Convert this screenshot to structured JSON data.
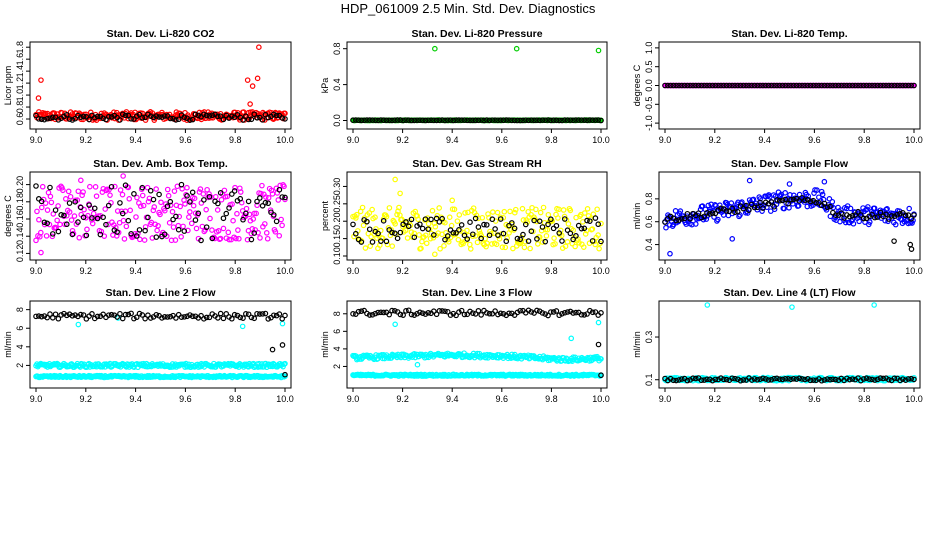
{
  "page": {
    "title": "HDP_061009  2.5 Min. Std. Dev. Diagnostics"
  },
  "colors": {
    "red": "#ff0000",
    "black": "#000000",
    "green": "#00cc00",
    "magenta": "#ff00ff",
    "yellow": "#ffff00",
    "blue": "#0000ff",
    "cyan": "#00ffff"
  },
  "chart_data": [
    {
      "type": "scatter",
      "title": "Stan. Dev. Li-820 CO2",
      "ylabel": "Licor ppm",
      "xlim": [
        9.0,
        10.0
      ],
      "ylim": [
        0.5,
        1.82
      ],
      "xticks": [
        "9.0",
        "9.2",
        "9.4",
        "9.6",
        "9.8",
        "10.0"
      ],
      "yticks": [
        0.6,
        0.8,
        1.0,
        1.2,
        1.4,
        1.6,
        1.8
      ],
      "yticklabels": [
        "0.6",
        "0.8",
        "1.0",
        "1.2",
        "1.4",
        "1.6",
        "1.8"
      ],
      "series": [
        {
          "color": "red",
          "band": [
            0.58,
            0.72
          ],
          "outliers": [
            [
              9.01,
              0.95
            ],
            [
              9.02,
              1.25
            ],
            [
              9.85,
              1.25
            ],
            [
              9.87,
              1.15
            ],
            [
              9.89,
              1.28
            ],
            [
              9.895,
              1.8
            ],
            [
              9.86,
              0.85
            ]
          ]
        },
        {
          "color": "black",
          "band": [
            0.58,
            0.68
          ]
        }
      ]
    },
    {
      "type": "scatter",
      "title": "Stan. Dev. Li-820 Pressure",
      "ylabel": "kPa",
      "xlim": [
        9.0,
        10.0
      ],
      "ylim": [
        -0.05,
        0.83
      ],
      "xticks": [
        "9.0",
        "9.2",
        "9.4",
        "9.6",
        "9.8",
        "10.0"
      ],
      "yticks": [
        0.0,
        0.4,
        0.8
      ],
      "yticklabels": [
        "0.0",
        "0.4",
        "0.8"
      ],
      "series": [
        {
          "color": "green",
          "band": [
            0.0,
            0.005
          ],
          "outliers": [
            [
              9.33,
              0.8
            ],
            [
              9.66,
              0.8
            ],
            [
              9.99,
              0.78
            ]
          ]
        },
        {
          "color": "black",
          "band": [
            0.0,
            0.005
          ]
        }
      ]
    },
    {
      "type": "scatter",
      "title": "Stan. Dev. Li-820 Temp.",
      "ylabel": "degrees C",
      "xlim": [
        9.0,
        10.0
      ],
      "ylim": [
        -1.05,
        1.05
      ],
      "xticks": [
        "9.0",
        "9.2",
        "9.4",
        "9.6",
        "9.8",
        "10.0"
      ],
      "yticks": [
        -1.0,
        -0.5,
        0.0,
        0.5,
        1.0
      ],
      "yticklabels": [
        "-1.0",
        "-0.5",
        "0.0",
        "0.5",
        "1.0"
      ],
      "series": [
        {
          "color": "magenta",
          "band": [
            0.0,
            0.0
          ]
        },
        {
          "color": "black",
          "band": [
            0.0,
            0.0
          ]
        }
      ]
    },
    {
      "type": "scatter",
      "title": "Stan. Dev. Amb. Box Temp.",
      "ylabel": "degrees C",
      "xlim": [
        9.0,
        10.0
      ],
      "ylim": [
        0.117,
        0.21
      ],
      "xticks": [
        "9.0",
        "9.2",
        "9.4",
        "9.6",
        "9.8",
        "10.0"
      ],
      "yticks": [
        0.12,
        0.14,
        0.16,
        0.18,
        0.2
      ],
      "yticklabels": [
        "0.12",
        "0.14",
        "0.16",
        "0.18",
        "0.20"
      ],
      "series": [
        {
          "color": "magenta",
          "band": [
            0.135,
            0.2
          ],
          "outliers": [
            [
              9.02,
              0.121
            ],
            [
              9.18,
              0.205
            ],
            [
              9.35,
              0.21
            ]
          ]
        },
        {
          "color": "black",
          "band": [
            0.135,
            0.2
          ]
        }
      ]
    },
    {
      "type": "scatter",
      "title": "Stan. Dev. Gas Stream RH",
      "ylabel": "percent",
      "xlim": [
        9.0,
        10.0
      ],
      "ylim": [
        0.1,
        0.33
      ],
      "xticks": [
        "9.0",
        "9.2",
        "9.4",
        "9.6",
        "9.8",
        "10.0"
      ],
      "yticks": [
        0.1,
        0.15,
        0.2,
        0.25,
        0.3
      ],
      "yticklabels": [
        "0.10",
        "0.15",
        "0.20",
        "0.25",
        "0.30"
      ],
      "series": [
        {
          "color": "yellow",
          "band": [
            0.12,
            0.24
          ],
          "outliers": [
            [
              9.17,
              0.32
            ],
            [
              9.19,
              0.28
            ],
            [
              9.33,
              0.105
            ],
            [
              9.4,
              0.26
            ]
          ]
        },
        {
          "color": "black",
          "band": [
            0.14,
            0.21
          ]
        }
      ]
    },
    {
      "type": "scatter",
      "title": "Stan. Dev. Sample Flow",
      "ylabel": "ml/min",
      "xlim": [
        9.0,
        10.0
      ],
      "ylim": [
        0.3,
        1.0
      ],
      "xticks": [
        "9.0",
        "9.2",
        "9.4",
        "9.6",
        "9.8",
        "10.0"
      ],
      "yticks": [
        0.4,
        0.6,
        0.8
      ],
      "yticklabels": [
        "0.4",
        "0.6",
        "0.8"
      ],
      "series": [
        {
          "color": "blue",
          "curve": [
            [
              9.0,
              0.62
            ],
            [
              9.2,
              0.68
            ],
            [
              9.5,
              0.8
            ],
            [
              9.62,
              0.8
            ],
            [
              9.7,
              0.66
            ],
            [
              10.0,
              0.65
            ]
          ],
          "spread": 0.08,
          "outliers": [
            [
              9.34,
              0.96
            ],
            [
              9.5,
              0.93
            ],
            [
              9.64,
              0.95
            ],
            [
              9.02,
              0.32
            ],
            [
              9.27,
              0.45
            ]
          ]
        },
        {
          "color": "black",
          "curve": [
            [
              9.0,
              0.62
            ],
            [
              9.2,
              0.68
            ],
            [
              9.5,
              0.78
            ],
            [
              9.62,
              0.78
            ],
            [
              9.7,
              0.66
            ],
            [
              10.0,
              0.65
            ]
          ],
          "spread": 0.03,
          "outliers": [
            [
              9.92,
              0.43
            ],
            [
              9.99,
              0.36
            ],
            [
              9.985,
              0.4
            ]
          ]
        }
      ]
    },
    {
      "type": "scatter",
      "title": "Stan. Dev. Line 2 Flow",
      "ylabel": "ml/min",
      "xlim": [
        9.0,
        10.0
      ],
      "ylim": [
        0.0,
        8.5
      ],
      "xticks": [
        "9.0",
        "9.2",
        "9.4",
        "9.6",
        "9.8",
        "10.0"
      ],
      "yticks": [
        2,
        4,
        6,
        8
      ],
      "yticklabels": [
        "2",
        "4",
        "6",
        "8"
      ],
      "series": [
        {
          "color": "cyan",
          "band": [
            1.8,
            2.2
          ],
          "outliers": [
            [
              9.17,
              6.4
            ],
            [
              9.33,
              7.1
            ],
            [
              9.83,
              6.2
            ],
            [
              9.99,
              6.5
            ]
          ]
        },
        {
          "color": "cyan",
          "band": [
            0.7,
            0.9
          ]
        },
        {
          "color": "black",
          "band": [
            7.0,
            7.6
          ],
          "outliers": [
            [
              9.95,
              3.7
            ],
            [
              9.99,
              4.2
            ],
            [
              10.0,
              1.0
            ]
          ]
        }
      ]
    },
    {
      "type": "scatter",
      "title": "Stan. Dev. Line 3 Flow",
      "ylabel": "ml/min",
      "xlim": [
        9.0,
        10.0
      ],
      "ylim": [
        0.0,
        9.0
      ],
      "xticks": [
        "9.0",
        "9.2",
        "9.4",
        "9.6",
        "9.8",
        "10.0"
      ],
      "yticks": [
        2,
        4,
        6,
        8
      ],
      "yticklabels": [
        "2",
        "4",
        "6",
        "8"
      ],
      "series": [
        {
          "color": "cyan",
          "curve": [
            [
              9.0,
              3.0
            ],
            [
              9.4,
              3.3
            ],
            [
              9.6,
              3.2
            ],
            [
              9.85,
              2.8
            ],
            [
              10.0,
              2.9
            ]
          ],
          "spread": 0.25,
          "outliers": [
            [
              9.17,
              6.8
            ],
            [
              9.88,
              5.2
            ],
            [
              9.99,
              7.0
            ],
            [
              9.26,
              2.2
            ]
          ]
        },
        {
          "color": "cyan",
          "band": [
            0.9,
            1.1
          ]
        },
        {
          "color": "black",
          "band": [
            7.8,
            8.4
          ],
          "outliers": [
            [
              9.99,
              4.5
            ],
            [
              10.0,
              1.0
            ]
          ]
        }
      ]
    },
    {
      "type": "scatter",
      "title": "Stan. Dev. Line 4 (LT) Flow",
      "ylabel": "ml/min",
      "xlim": [
        9.0,
        10.0
      ],
      "ylim": [
        0.08,
        0.45
      ],
      "xticks": [
        "9.0",
        "9.2",
        "9.4",
        "9.6",
        "9.8",
        "10.0"
      ],
      "yticks": [
        0.1,
        0.3
      ],
      "yticklabels": [
        "0.1",
        "0.3"
      ],
      "series": [
        {
          "color": "cyan",
          "band": [
            0.095,
            0.11
          ],
          "outliers": [
            [
              9.17,
              0.45
            ],
            [
              9.51,
              0.44
            ],
            [
              9.84,
              0.45
            ]
          ]
        },
        {
          "color": "black",
          "band": [
            0.095,
            0.108
          ]
        }
      ]
    }
  ]
}
